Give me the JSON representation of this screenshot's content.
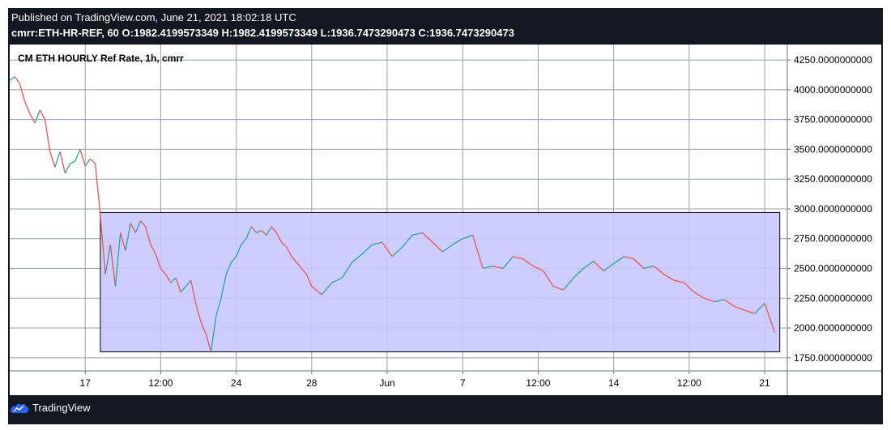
{
  "header": {
    "published": "Published on TradingView.com, June 21, 2021 18:02:18 UTC",
    "ohlc_symbol": "cmrr:ETH-HR-REF, 60",
    "ohlc_o_label": "O:",
    "ohlc_o": "1982.4199573349",
    "ohlc_h_label": "H:",
    "ohlc_h": "1982.4199573349",
    "ohlc_l_label": "L:",
    "ohlc_l": "1936.7473290473",
    "ohlc_c_label": "C:",
    "ohlc_c": "1936.7473290473"
  },
  "footer": {
    "brand": "TradingView"
  },
  "colors": {
    "frame": "#131722",
    "up": "#26a69a",
    "down": "#ef5350",
    "range_box_fill": "#c8c8ff",
    "range_box_stroke": "#000000",
    "grid": "#9aa0a8"
  },
  "chart_data": {
    "type": "line",
    "title": "CM ETH HOURLY Ref Rate, 1h, cmrr",
    "ylim": [
      1640,
      4380
    ],
    "y_ticks": [
      4250,
      4000,
      3750,
      3500,
      3250,
      3000,
      2750,
      2500,
      2250,
      2000,
      1750
    ],
    "y_tick_labels": [
      "4250.0000000000",
      "4000.0000000000",
      "3750.0000000000",
      "3500.0000000000",
      "3250.0000000000",
      "3000.0000000000",
      "2750.0000000000",
      "2500.0000000000",
      "2250.0000000000",
      "2000.0000000000",
      "1750.0000000000"
    ],
    "x_ticks": [
      {
        "label": "17",
        "t": 1.5
      },
      {
        "label": "12:00",
        "t": 3.0
      },
      {
        "label": "24",
        "t": 4.5
      },
      {
        "label": "28",
        "t": 6.0
      },
      {
        "label": "Jun",
        "t": 7.5
      },
      {
        "label": "7",
        "t": 9.0
      },
      {
        "label": "12:00",
        "t": 10.5
      },
      {
        "label": "14",
        "t": 12.0
      },
      {
        "label": "12:00",
        "t": 13.5
      },
      {
        "label": "21",
        "t": 15.0
      }
    ],
    "grid": true,
    "series": [
      {
        "x": [
          0.0,
          0.1,
          0.2,
          0.3,
          0.4,
          0.5,
          0.6,
          0.7,
          0.8,
          0.9,
          1.0,
          1.1,
          1.2,
          1.3,
          1.4,
          1.5,
          1.6,
          1.7,
          1.8,
          1.9,
          2.0,
          2.1,
          2.2,
          2.3,
          2.4,
          2.5,
          2.6,
          2.7,
          2.8,
          2.9,
          3.0,
          3.1,
          3.2,
          3.3,
          3.4,
          3.5,
          3.6,
          3.7,
          3.8,
          3.9,
          4.0,
          4.1,
          4.2,
          4.3,
          4.4,
          4.5,
          4.6,
          4.7,
          4.8,
          4.9,
          5.0,
          5.1,
          5.2,
          5.3,
          5.4,
          5.5,
          5.6,
          5.7,
          5.8,
          5.9,
          6.0,
          6.2,
          6.4,
          6.6,
          6.8,
          7.0,
          7.2,
          7.4,
          7.6,
          7.8,
          8.0,
          8.2,
          8.4,
          8.6,
          8.8,
          9.0,
          9.2,
          9.4,
          9.6,
          9.8,
          10.0,
          10.2,
          10.4,
          10.6,
          10.8,
          11.0,
          11.2,
          11.4,
          11.6,
          11.8,
          12.0,
          12.2,
          12.4,
          12.6,
          12.8,
          13.0,
          13.2,
          13.4,
          13.6,
          13.8,
          14.0,
          14.2,
          14.4,
          14.6,
          14.8,
          15.0,
          15.2
        ],
        "y": [
          4080,
          4110,
          4050,
          3900,
          3800,
          3720,
          3830,
          3750,
          3480,
          3350,
          3480,
          3300,
          3380,
          3400,
          3500,
          3360,
          3420,
          3380,
          2950,
          2450,
          2700,
          2350,
          2800,
          2650,
          2880,
          2800,
          2900,
          2850,
          2700,
          2620,
          2500,
          2450,
          2380,
          2420,
          2300,
          2350,
          2400,
          2200,
          2050,
          1950,
          1800,
          2100,
          2250,
          2450,
          2550,
          2600,
          2700,
          2750,
          2850,
          2800,
          2820,
          2780,
          2850,
          2800,
          2720,
          2680,
          2600,
          2550,
          2500,
          2450,
          2350,
          2280,
          2380,
          2420,
          2550,
          2620,
          2700,
          2720,
          2600,
          2680,
          2780,
          2800,
          2720,
          2640,
          2700,
          2750,
          2780,
          2500,
          2520,
          2500,
          2600,
          2580,
          2520,
          2480,
          2350,
          2320,
          2420,
          2500,
          2560,
          2480,
          2540,
          2600,
          2580,
          2500,
          2520,
          2450,
          2400,
          2380,
          2300,
          2250,
          2220,
          2240,
          2180,
          2150,
          2120,
          2210,
          1960
        ]
      }
    ],
    "range_box": {
      "x_start": 1.8,
      "x_end": 15.3,
      "y_low": 1800,
      "y_high": 2970
    }
  }
}
